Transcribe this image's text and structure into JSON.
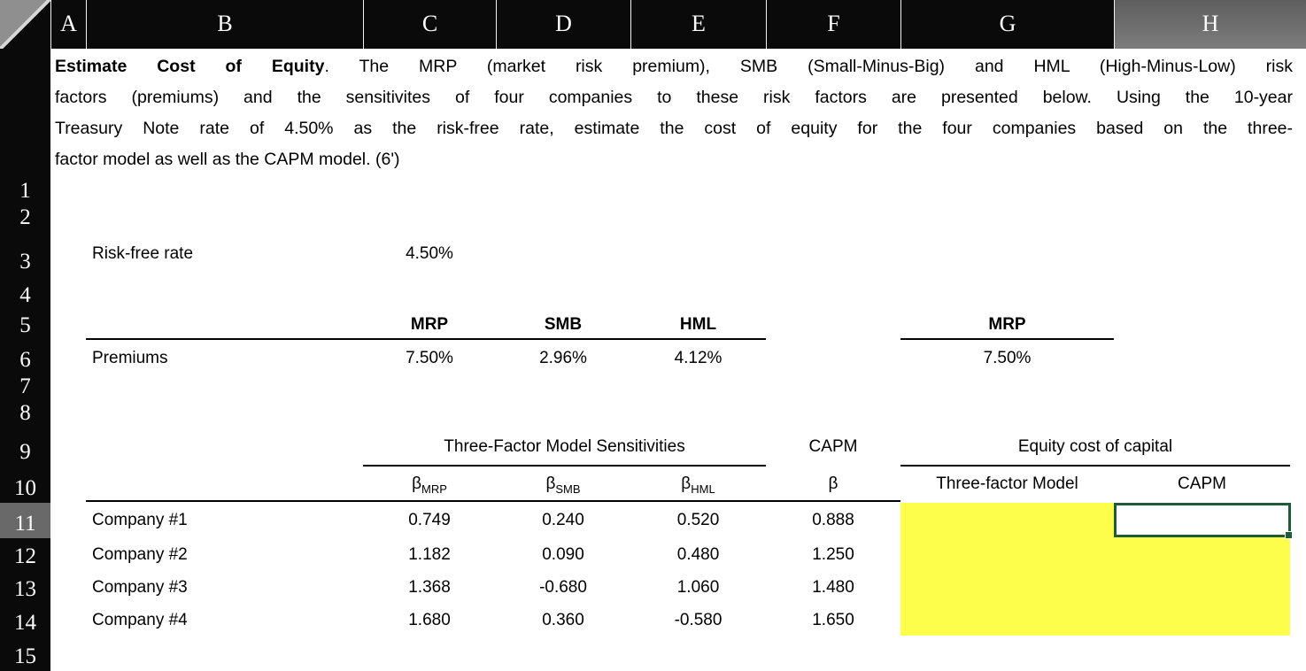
{
  "grid": {
    "column_labels": [
      "A",
      "B",
      "C",
      "D",
      "E",
      "F",
      "G",
      "H"
    ],
    "row_labels": [
      "1",
      "2",
      "3",
      "4",
      "5",
      "6",
      "7",
      "8",
      "9",
      "10",
      "11",
      "12",
      "13",
      "14",
      "15"
    ],
    "selected_cell": "H11",
    "selected_column": "H",
    "selected_row": "11"
  },
  "problem": {
    "lead_bold": "Estimate Cost of Equity",
    "line1_rest": ". The MRP (market risk premium), SMB (Small-Minus-Big) and HML (High-Minus-Low) risk",
    "line2": "factors (premiums) and the sensitivites of four companies to these risk factors are presented below. Using the 10-year",
    "line3": "Treasury Note rate of 4.50% as the risk-free rate, estimate the cost of equity for the four companies based on the three-",
    "line4": "factor model as well as the CAPM model. (6')"
  },
  "inputs": {
    "risk_free_label": "Risk-free rate",
    "risk_free_value": "4.50%",
    "premiums_label": "Premiums",
    "factor_headers": [
      "MRP",
      "SMB",
      "HML"
    ],
    "factor_values": [
      "7.50%",
      "2.96%",
      "4.12%"
    ],
    "mrp_repeat_header": "MRP",
    "mrp_repeat_value": "7.50%"
  },
  "sensitivities": {
    "title": "Three-Factor Model Sensitivities",
    "capm_header": "CAPM",
    "equity_title": "Equity cost of capital",
    "beta_symbol": "β",
    "beta_subscripts": [
      "MRP",
      "SMB",
      "HML"
    ],
    "capm_beta_symbol": "β",
    "result_headers": [
      "Three-factor Model",
      "CAPM"
    ],
    "companies": [
      {
        "name": "Company #1",
        "beta_mrp": "0.749",
        "beta_smb": "0.240",
        "beta_hml": "0.520",
        "capm_beta": "0.888"
      },
      {
        "name": "Company #2",
        "beta_mrp": "1.182",
        "beta_smb": "0.090",
        "beta_hml": "0.480",
        "capm_beta": "1.250"
      },
      {
        "name": "Company #3",
        "beta_mrp": "1.368",
        "beta_smb": "-0.680",
        "beta_hml": "1.060",
        "capm_beta": "1.480"
      },
      {
        "name": "Company #4",
        "beta_mrp": "1.680",
        "beta_smb": "0.360",
        "beta_hml": "-0.580",
        "capm_beta": "1.650"
      }
    ]
  },
  "colors": {
    "header_bg": "#0a0a0a",
    "selected_header_bg": "#696969",
    "answer_fill_yellow": "#fdfd4c",
    "selection_border_green": "#1d5c38"
  }
}
